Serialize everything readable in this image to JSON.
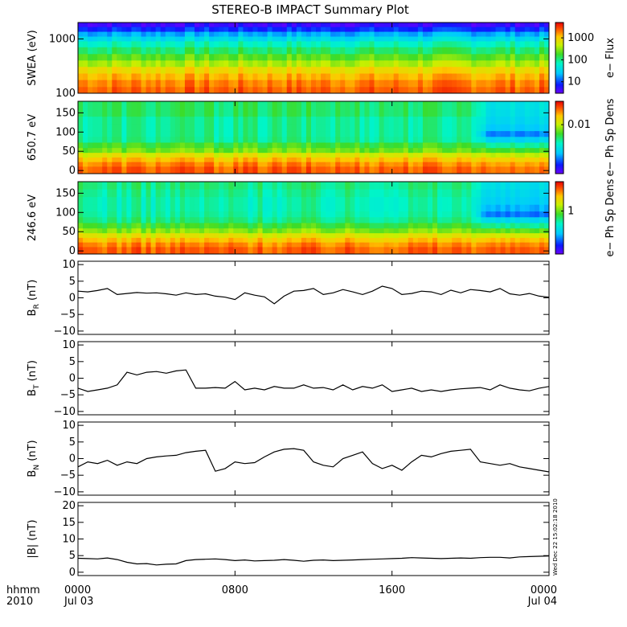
{
  "title": "STEREO-B IMPACT Summary Plot",
  "time_axis": {
    "row1_label": "hhmm",
    "row2_label": "2010",
    "ticks": [
      {
        "hour": 0,
        "hhmm": "0000",
        "date": "Jul 03"
      },
      {
        "hour": 8,
        "hhmm": "0800",
        "date": ""
      },
      {
        "hour": 16,
        "hhmm": "1600",
        "date": ""
      },
      {
        "hour": 24,
        "hhmm": "0000",
        "date": "Jul 04"
      }
    ],
    "range_hours": [
      0,
      24
    ]
  },
  "timestamp": "Wed Dec 22 15:02:18 2010",
  "colors": {
    "line": "#000000",
    "frame": "#000000"
  },
  "chart_data": [
    {
      "type": "heatmap",
      "name": "swea",
      "ylabel": "SWEA (eV)",
      "yscale": "log",
      "ylim": [
        100,
        2000
      ],
      "yticks": [
        {
          "v": 100,
          "label": "100"
        },
        {
          "v": 1000,
          "label": "1000"
        }
      ],
      "colorbar": {
        "label": "e− Flux",
        "scale": "log",
        "range": [
          3,
          5000
        ],
        "ticks": [
          {
            "v": 10,
            "label": "10"
          },
          {
            "v": 100,
            "label": "100"
          },
          {
            "v": 1000,
            "label": "1000"
          }
        ]
      },
      "bands": [
        {
          "y": 1800,
          "level": 0.06
        },
        {
          "y": 1500,
          "level": 0.14
        },
        {
          "y": 1200,
          "level": 0.26
        },
        {
          "y": 1000,
          "level": 0.34
        },
        {
          "y": 800,
          "level": 0.43
        },
        {
          "y": 600,
          "level": 0.5
        },
        {
          "y": 450,
          "level": 0.58
        },
        {
          "y": 350,
          "level": 0.66
        },
        {
          "y": 260,
          "level": 0.76
        },
        {
          "y": 200,
          "level": 0.82
        },
        {
          "y": 150,
          "level": 0.87
        },
        {
          "y": 110,
          "level": 0.9
        }
      ]
    },
    {
      "type": "heatmap",
      "name": "pad650",
      "ylabel": "650.7 eV",
      "ylim": [
        -8,
        180
      ],
      "yticks": [
        {
          "v": 0,
          "label": "0"
        },
        {
          "v": 50,
          "label": "50"
        },
        {
          "v": 100,
          "label": "100"
        },
        {
          "v": 150,
          "label": "150"
        }
      ],
      "colorbar": {
        "label": "e− Ph Sp Dens",
        "scale": "log",
        "range": [
          0.001,
          0.03
        ],
        "ticks": [
          {
            "v": 0.01,
            "label": "0.01"
          }
        ]
      },
      "bands": [
        {
          "y": 170,
          "level": 0.5,
          "late": 0.36
        },
        {
          "y": 150,
          "level": 0.5,
          "late": 0.35
        },
        {
          "y": 130,
          "level": 0.46,
          "late": 0.33
        },
        {
          "y": 110,
          "level": 0.46,
          "late": 0.3
        },
        {
          "y": 95,
          "level": 0.46,
          "late": 0.22
        },
        {
          "y": 80,
          "level": 0.47,
          "late": 0.32
        },
        {
          "y": 65,
          "level": 0.55,
          "late": 0.46
        },
        {
          "y": 52,
          "level": 0.6,
          "late": 0.56
        },
        {
          "y": 40,
          "level": 0.72,
          "late": 0.68
        },
        {
          "y": 28,
          "level": 0.8,
          "late": 0.78
        },
        {
          "y": 16,
          "level": 0.86,
          "late": 0.84
        },
        {
          "y": 4,
          "level": 0.9,
          "late": 0.88
        }
      ]
    },
    {
      "type": "heatmap",
      "name": "pad246",
      "ylabel": "246.6 eV",
      "ylim": [
        -8,
        180
      ],
      "yticks": [
        {
          "v": 0,
          "label": "0"
        },
        {
          "v": 50,
          "label": "50"
        },
        {
          "v": 100,
          "label": "100"
        },
        {
          "v": 150,
          "label": "150"
        }
      ],
      "colorbar": {
        "label": "e− Ph Sp Dens",
        "scale": "log",
        "range": [
          0.2,
          3
        ],
        "ticks": [
          {
            "v": 1,
            "label": "1"
          }
        ]
      },
      "bands": [
        {
          "y": 170,
          "level": 0.48,
          "late": 0.34
        },
        {
          "y": 150,
          "level": 0.46,
          "late": 0.32
        },
        {
          "y": 130,
          "level": 0.44,
          "late": 0.3
        },
        {
          "y": 110,
          "level": 0.44,
          "late": 0.26
        },
        {
          "y": 95,
          "level": 0.45,
          "late": 0.2
        },
        {
          "y": 80,
          "level": 0.48,
          "late": 0.33
        },
        {
          "y": 65,
          "level": 0.55,
          "late": 0.46
        },
        {
          "y": 52,
          "level": 0.62,
          "late": 0.58
        },
        {
          "y": 40,
          "level": 0.72,
          "late": 0.7
        },
        {
          "y": 28,
          "level": 0.8,
          "late": 0.8
        },
        {
          "y": 16,
          "level": 0.86,
          "late": 0.86
        },
        {
          "y": 4,
          "level": 0.9,
          "late": 0.9
        }
      ]
    },
    {
      "type": "line",
      "name": "br",
      "ylabel": "B",
      "ylabel_sub": "R",
      "ylabel_unit": "(nT)",
      "ylim": [
        -11,
        11
      ],
      "yticks": [
        {
          "v": -10,
          "label": "−10"
        },
        {
          "v": -5,
          "label": "−5"
        },
        {
          "v": 0,
          "label": "0"
        },
        {
          "v": 5,
          "label": "5"
        },
        {
          "v": 10,
          "label": "10"
        }
      ],
      "x": [
        0,
        0.5,
        1,
        1.5,
        2,
        2.5,
        3,
        3.5,
        4,
        4.5,
        5,
        5.5,
        6,
        6.5,
        7,
        7.5,
        8,
        8.5,
        9,
        9.5,
        10,
        10.5,
        11,
        11.5,
        12,
        12.5,
        13,
        13.5,
        14,
        14.5,
        15,
        15.5,
        16,
        16.5,
        17,
        17.5,
        18,
        18.5,
        19,
        19.5,
        20,
        20.5,
        21,
        21.5,
        22,
        22.5,
        23,
        23.5,
        24
      ],
      "y": [
        2,
        1.8,
        2.2,
        2.8,
        1,
        1.3,
        1.6,
        1.4,
        1.5,
        1.2,
        0.8,
        1.5,
        1,
        1.2,
        0.5,
        0.2,
        -0.5,
        1.5,
        0.8,
        0.3,
        -1.8,
        0.5,
        2,
        2.2,
        2.8,
        1,
        1.5,
        2.5,
        1.8,
        1,
        2,
        3.5,
        2.8,
        1,
        1.3,
        2,
        1.8,
        1,
        2.3,
        1.5,
        2.5,
        2.2,
        1.8,
        2.8,
        1.2,
        0.8,
        1.3,
        0.5,
        0.2
      ]
    },
    {
      "type": "line",
      "name": "bt",
      "ylabel": "B",
      "ylabel_sub": "T",
      "ylabel_unit": "(nT)",
      "ylim": [
        -11,
        11
      ],
      "yticks": [
        {
          "v": -10,
          "label": "−10"
        },
        {
          "v": -5,
          "label": "−5"
        },
        {
          "v": 0,
          "label": "0"
        },
        {
          "v": 5,
          "label": "5"
        },
        {
          "v": 10,
          "label": "10"
        }
      ],
      "x": [
        0,
        0.5,
        1,
        1.5,
        2,
        2.5,
        3,
        3.5,
        4,
        4.5,
        5,
        5.5,
        6,
        6.5,
        7,
        7.5,
        8,
        8.5,
        9,
        9.5,
        10,
        10.5,
        11,
        11.5,
        12,
        12.5,
        13,
        13.5,
        14,
        14.5,
        15,
        15.5,
        16,
        16.5,
        17,
        17.5,
        18,
        18.5,
        19,
        19.5,
        20,
        20.5,
        21,
        21.5,
        22,
        22.5,
        23,
        23.5,
        24
      ],
      "y": [
        -3,
        -4,
        -3.5,
        -3,
        -2,
        1.8,
        1,
        1.8,
        2,
        1.5,
        2.2,
        2.5,
        -3,
        -3,
        -2.8,
        -3,
        -1,
        -3.5,
        -3,
        -3.5,
        -2.5,
        -3,
        -3,
        -2,
        -3,
        -2.8,
        -3.5,
        -2,
        -3.5,
        -2.5,
        -3,
        -2,
        -4,
        -3.5,
        -3,
        -4,
        -3.5,
        -4,
        -3.5,
        -3.2,
        -3,
        -2.8,
        -3.5,
        -2,
        -3,
        -3.5,
        -3.8,
        -3,
        -2.5
      ]
    },
    {
      "type": "line",
      "name": "bn",
      "ylabel": "B",
      "ylabel_sub": "N",
      "ylabel_unit": "(nT)",
      "ylim": [
        -11,
        11
      ],
      "yticks": [
        {
          "v": -10,
          "label": "−10"
        },
        {
          "v": -5,
          "label": "−5"
        },
        {
          "v": 0,
          "label": "0"
        },
        {
          "v": 5,
          "label": "5"
        },
        {
          "v": 10,
          "label": "10"
        }
      ],
      "x": [
        0,
        0.5,
        1,
        1.5,
        2,
        2.5,
        3,
        3.5,
        4,
        4.5,
        5,
        5.5,
        6,
        6.5,
        7,
        7.5,
        8,
        8.5,
        9,
        9.5,
        10,
        10.5,
        11,
        11.5,
        12,
        12.5,
        13,
        13.5,
        14,
        14.5,
        15,
        15.5,
        16,
        16.5,
        17,
        17.5,
        18,
        18.5,
        19,
        19.5,
        20,
        20.5,
        21,
        21.5,
        22,
        22.5,
        23,
        23.5,
        24
      ],
      "y": [
        -2.5,
        -1,
        -1.5,
        -0.5,
        -2,
        -1,
        -1.5,
        0,
        0.5,
        0.8,
        1,
        1.8,
        2.2,
        2.5,
        -3.8,
        -3,
        -1,
        -1.5,
        -1.2,
        0.5,
        2,
        2.8,
        3,
        2.5,
        -1,
        -2,
        -2.5,
        0,
        1,
        2,
        -1.5,
        -3,
        -2,
        -3.5,
        -1,
        1,
        0.5,
        1.5,
        2.2,
        2.5,
        2.8,
        -1,
        -1.5,
        -2,
        -1.5,
        -2.5,
        -3,
        -3.5,
        -4
      ]
    },
    {
      "type": "line",
      "name": "bmag",
      "ylabel": "|B| (nT)",
      "ylim": [
        -1,
        21
      ],
      "yticks": [
        {
          "v": 0,
          "label": "0"
        },
        {
          "v": 5,
          "label": "5"
        },
        {
          "v": 10,
          "label": "10"
        },
        {
          "v": 15,
          "label": "15"
        },
        {
          "v": 20,
          "label": "20"
        }
      ],
      "x": [
        0,
        0.5,
        1,
        1.5,
        2,
        2.5,
        3,
        3.5,
        4,
        4.5,
        5,
        5.5,
        6,
        6.5,
        7,
        7.5,
        8,
        8.5,
        9,
        9.5,
        10,
        10.5,
        11,
        11.5,
        12,
        12.5,
        13,
        13.5,
        14,
        14.5,
        15,
        15.5,
        16,
        16.5,
        17,
        17.5,
        18,
        18.5,
        19,
        19.5,
        20,
        20.5,
        21,
        21.5,
        22,
        22.5,
        23,
        23.5,
        24
      ],
      "y": [
        4.2,
        4.1,
        4,
        4.3,
        3.8,
        3,
        2.5,
        2.6,
        2.2,
        2.4,
        2.5,
        3.5,
        3.8,
        3.9,
        4,
        3.8,
        3.5,
        3.7,
        3.4,
        3.5,
        3.6,
        3.8,
        3.6,
        3.3,
        3.6,
        3.7,
        3.5,
        3.6,
        3.7,
        3.8,
        3.9,
        4,
        4.1,
        4.2,
        4.4,
        4.3,
        4.2,
        4.1,
        4.2,
        4.3,
        4.2,
        4.4,
        4.5,
        4.5,
        4.3,
        4.6,
        4.7,
        4.8,
        4.9
      ]
    }
  ]
}
